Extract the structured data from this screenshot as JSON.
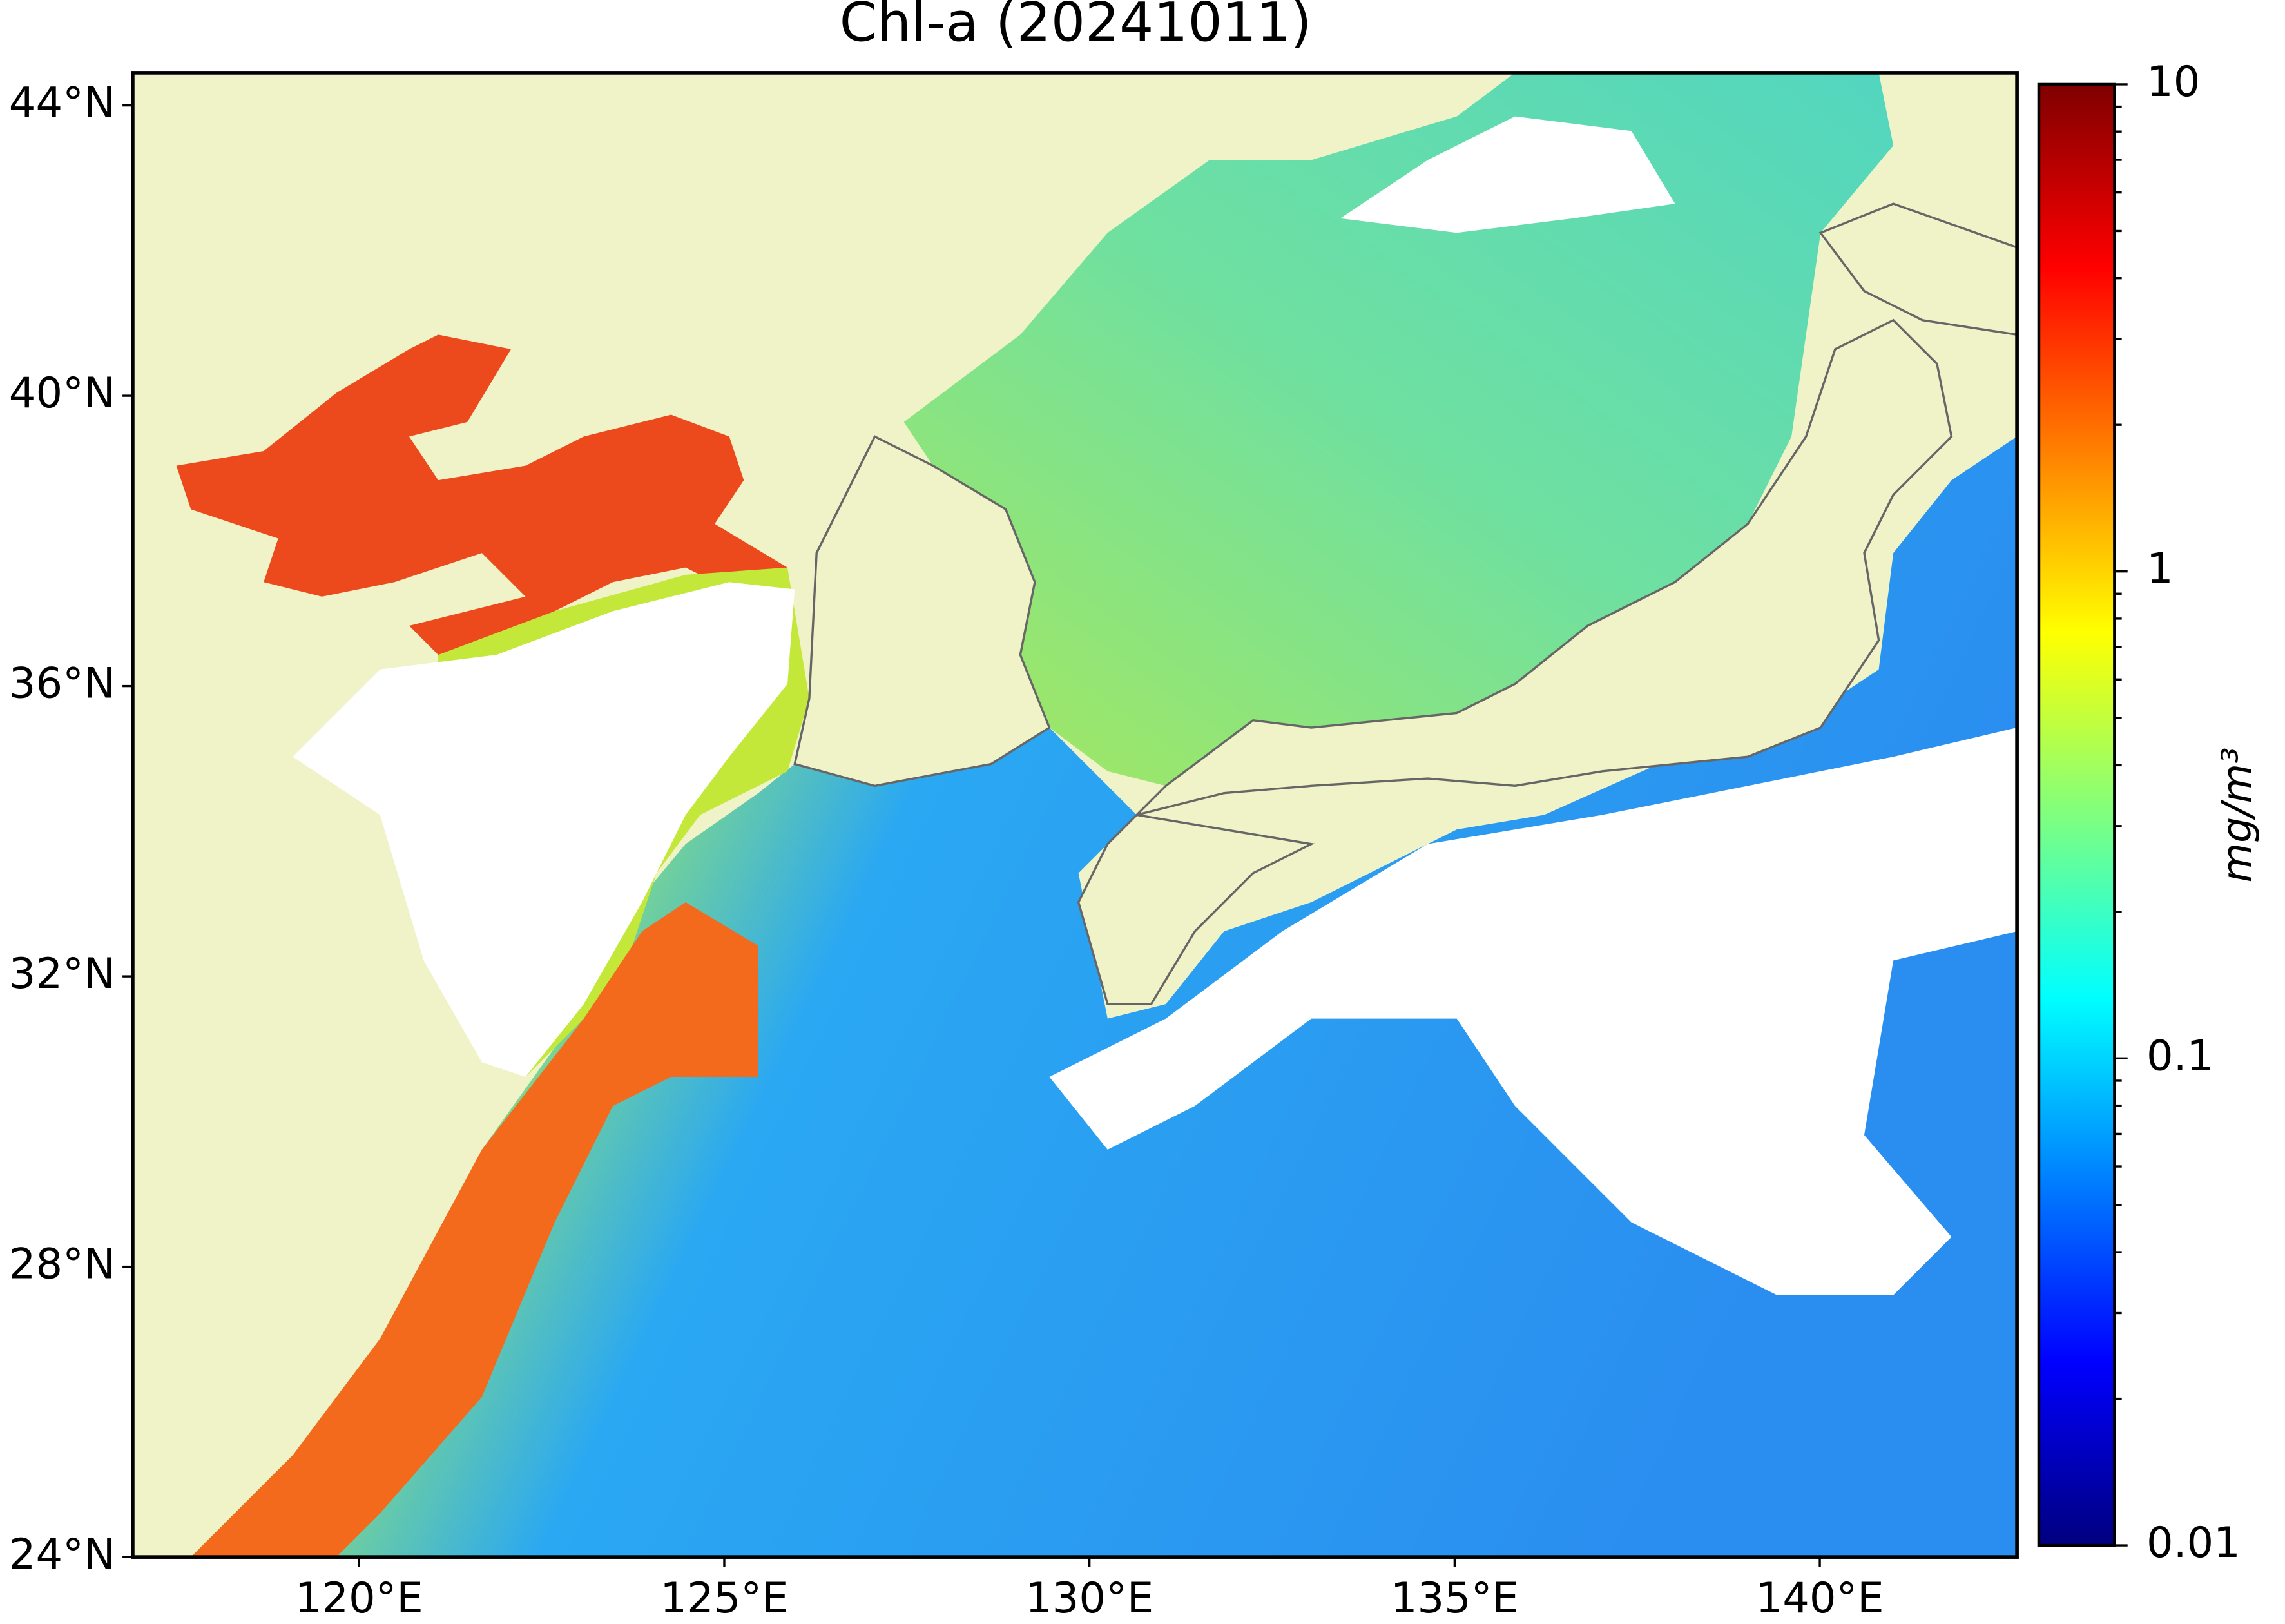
{
  "chart_data": {
    "type": "map",
    "title": "Chl-a (20241011)",
    "xlim": [
      116.9,
      142.7
    ],
    "ylim": [
      24,
      44.45
    ],
    "xticks": [
      {
        "value": 120,
        "label": "120°E"
      },
      {
        "value": 125,
        "label": "125°E"
      },
      {
        "value": 130,
        "label": "130°E"
      },
      {
        "value": 135,
        "label": "135°E"
      },
      {
        "value": 140,
        "label": "140°E"
      }
    ],
    "yticks": [
      {
        "value": 24,
        "label": "24°N"
      },
      {
        "value": 28,
        "label": "28°N"
      },
      {
        "value": 32,
        "label": "32°N"
      },
      {
        "value": 36,
        "label": "36°N"
      },
      {
        "value": 40,
        "label": "40°N"
      },
      {
        "value": 44,
        "label": "44°N"
      }
    ],
    "colorbar": {
      "label": "mg/m³",
      "colormap": "jet",
      "scale": "log",
      "lim": [
        0.01,
        10
      ],
      "ticks": [
        0.01,
        0.1,
        1,
        10
      ]
    }
  }
}
